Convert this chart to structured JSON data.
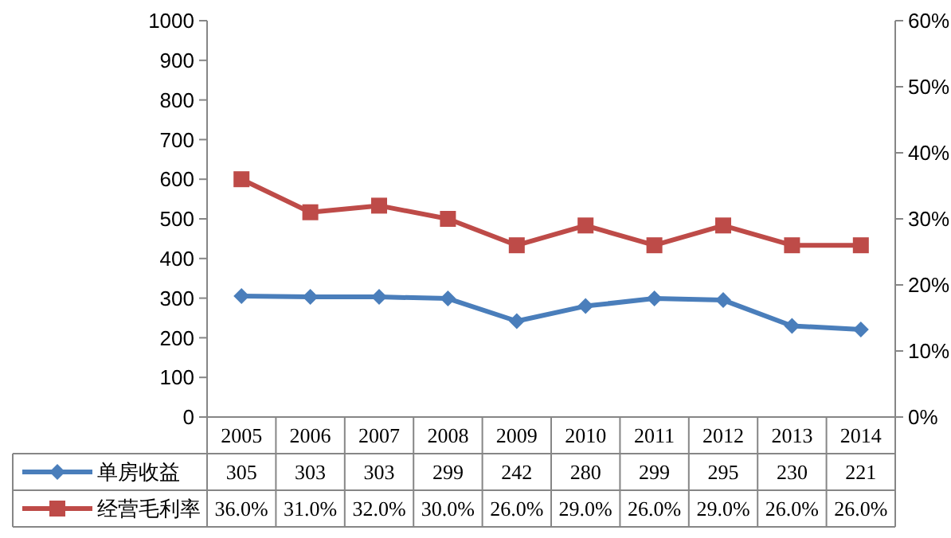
{
  "chart_data": {
    "type": "line",
    "categories": [
      "2005",
      "2006",
      "2007",
      "2008",
      "2009",
      "2010",
      "2011",
      "2012",
      "2013",
      "2014"
    ],
    "ylim": [
      0,
      1000
    ],
    "yticks": [
      0,
      100,
      200,
      300,
      400,
      500,
      600,
      700,
      800,
      900,
      1000
    ],
    "y2lim": [
      0,
      60
    ],
    "y2ticks": [
      {
        "value": 0,
        "label": "0%"
      },
      {
        "value": 10,
        "label": "10%"
      },
      {
        "value": 20,
        "label": "20%"
      },
      {
        "value": 30,
        "label": "30%"
      },
      {
        "value": 40,
        "label": "40%"
      },
      {
        "value": 50,
        "label": "50%"
      },
      {
        "value": 60,
        "label": "60%"
      }
    ],
    "grid": false,
    "legend": "bottom",
    "line_style": "solid",
    "series": [
      {
        "name": "单房收益",
        "color": "#4a7ebb",
        "marker": "diamond",
        "values": [
          305,
          303,
          303,
          299,
          242,
          280,
          299,
          295,
          230,
          221
        ],
        "value_labels": [
          "305",
          "303",
          "303",
          "299",
          "242",
          "280",
          "299",
          "295",
          "230",
          "221"
        ]
      },
      {
        "name": "经营毛利率",
        "color": "#be4b48",
        "marker": "square",
        "axis": "y2",
        "values": [
          36,
          31,
          32,
          30,
          26,
          29,
          26,
          29,
          26,
          26
        ],
        "value_labels": [
          "36.0%",
          "31.0%",
          "32.0%",
          "30.0%",
          "26.0%",
          "29.0%",
          "26.0%",
          "29.0%",
          "26.0%",
          "26.0%"
        ]
      }
    ]
  }
}
